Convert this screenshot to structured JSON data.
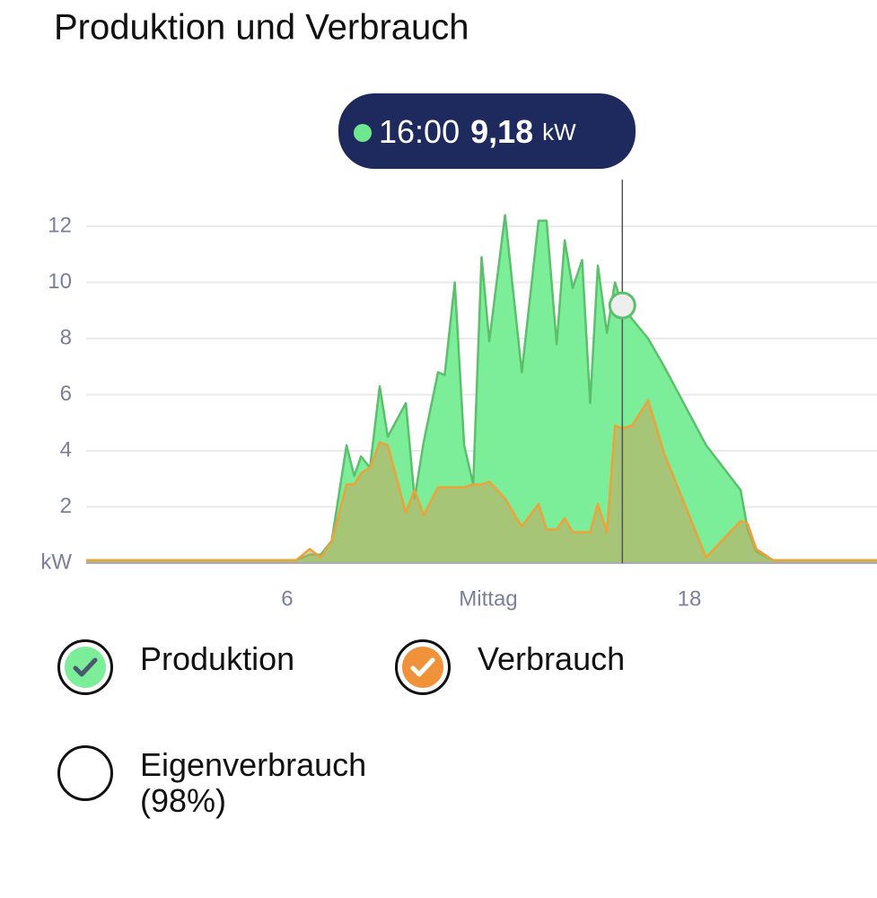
{
  "chart_data": {
    "type": "area",
    "title": "Produktion und Verbrauch",
    "x": [
      0,
      6.27,
      6.67,
      7.0,
      7.33,
      7.77,
      8.0,
      8.2,
      8.47,
      8.76,
      9.0,
      9.54,
      9.8,
      10.07,
      10.5,
      10.7,
      11.0,
      11.28,
      11.55,
      11.8,
      12.03,
      12.5,
      13.0,
      13.5,
      13.74,
      14.04,
      14.28,
      14.52,
      14.8,
      15.04,
      15.27,
      15.54,
      15.78,
      16.0,
      16.29,
      16.77,
      17.25,
      18.5,
      19.53,
      19.74,
      20.0,
      20.5,
      23.6
    ],
    "series": [
      {
        "name": "Produktion",
        "color": "#5cbf6c",
        "fill_color": "#7ced99",
        "values": [
          0.1,
          0.1,
          0.3,
          0.3,
          0.8,
          4.2,
          3.1,
          3.8,
          3.4,
          6.3,
          4.5,
          5.7,
          2.3,
          4.3,
          6.8,
          6.7,
          10.0,
          4.2,
          2.8,
          10.9,
          7.9,
          12.4,
          6.8,
          12.2,
          12.2,
          7.8,
          11.5,
          9.8,
          10.8,
          5.7,
          10.6,
          8.2,
          10.0,
          9.18,
          8.7,
          8.0,
          7.0,
          4.2,
          2.6,
          1.2,
          0.4,
          0.1,
          0.1
        ]
      },
      {
        "name": "Verbrauch",
        "color": "#eda23a",
        "fill_color": "#c9a45a",
        "values": [
          0.1,
          0.1,
          0.5,
          0.2,
          0.8,
          2.8,
          2.8,
          3.2,
          3.4,
          4.3,
          4.2,
          1.8,
          2.6,
          1.7,
          2.7,
          2.7,
          2.7,
          2.7,
          2.8,
          2.8,
          2.9,
          2.3,
          1.3,
          2.1,
          1.2,
          1.2,
          1.6,
          1.1,
          1.1,
          1.1,
          2.1,
          1.1,
          4.9,
          4.8,
          4.9,
          5.8,
          3.9,
          0.2,
          1.5,
          1.4,
          0.5,
          0.1,
          0.1
        ]
      }
    ],
    "extra_legend": "Eigenverbrauch (98%)",
    "xlim": [
      0,
      23.6
    ],
    "xticks": [
      6,
      {
        "value": 12,
        "label": "Mittag"
      },
      18
    ],
    "ylim": [
      0,
      13.6
    ],
    "yticks": [
      {
        "value": 0,
        "label": "kW"
      },
      2,
      4,
      6,
      8,
      10,
      12
    ],
    "grid": true,
    "tooltip": {
      "x": 16,
      "x_label": "16:00",
      "value": 9.18,
      "value_label": "9,18",
      "unit": "kW"
    }
  }
}
